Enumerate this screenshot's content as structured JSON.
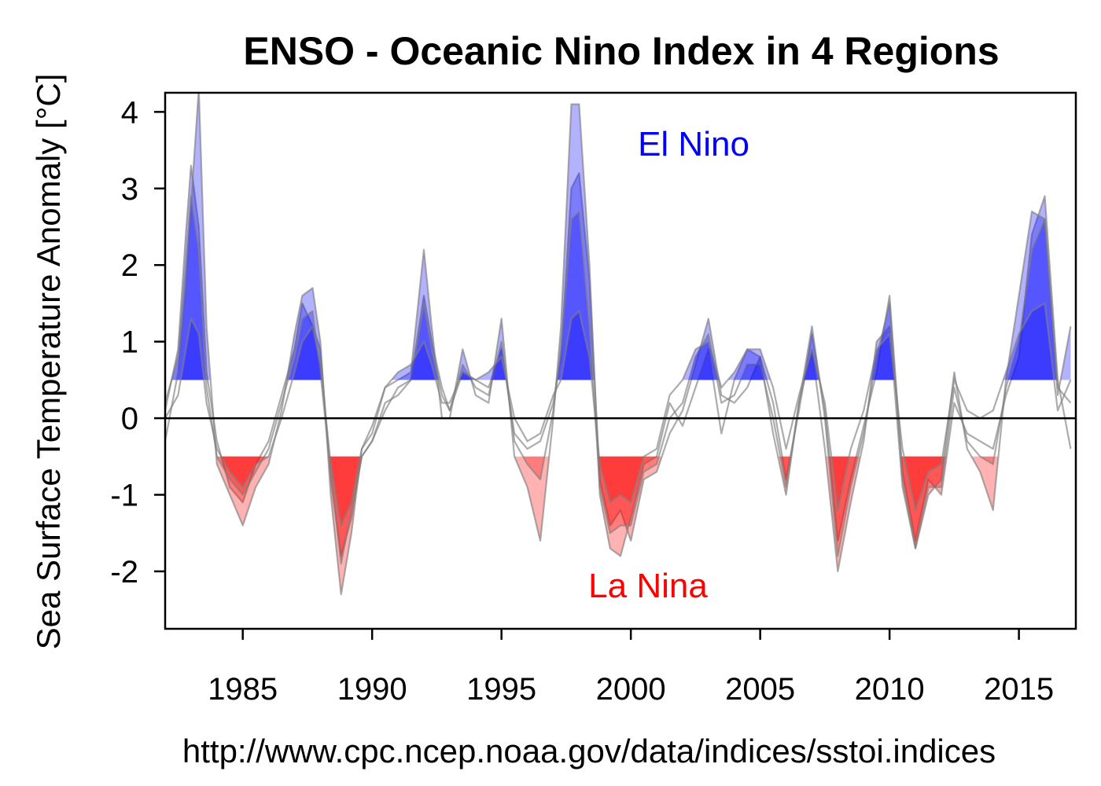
{
  "chart_data": {
    "type": "area",
    "title": "ENSO - Oceanic Nino Index in 4 Regions",
    "ylabel": "Sea Surface Temperature Anomaly  [°C]",
    "xlabel": "",
    "source": "http://www.cpc.ncep.noaa.gov/data/indices/sstoi.indices",
    "xlim": [
      1982,
      2017.2
    ],
    "ylim": [
      -2.75,
      4.25
    ],
    "x_ticks": [
      1985,
      1990,
      1995,
      2000,
      2005,
      2010,
      2015
    ],
    "y_ticks": [
      -2,
      -1,
      0,
      1,
      2,
      3,
      4
    ],
    "thresholds": {
      "el_nino": 0.5,
      "la_nina": -0.5
    },
    "annotations": {
      "el_nino": "El Nino",
      "la_nina": "La Nina"
    },
    "colors": {
      "el_nino": "#0000ff",
      "la_nina": "#ff0000",
      "line": "#808080"
    },
    "series": [
      {
        "x": [
          1982.0,
          1982.5,
          1982.8,
          1983.0,
          1983.3,
          1983.6,
          1984.0,
          1984.5,
          1985.0,
          1985.5,
          1986.0,
          1986.5,
          1987.0,
          1987.3,
          1987.7,
          1988.0,
          1988.4,
          1988.8,
          1989.2,
          1989.6,
          1990.0,
          1990.5,
          1991.0,
          1991.5,
          1992.0,
          1992.3,
          1992.7,
          1993.0,
          1993.5,
          1994.0,
          1994.5,
          1995.0,
          1995.5,
          1996.0,
          1996.5,
          1997.0,
          1997.3,
          1997.7,
          1998.0,
          1998.4,
          1998.8,
          1999.2,
          1999.6,
          2000.0,
          2000.5,
          2001.0,
          2001.5,
          2002.0,
          2002.5,
          2003.0,
          2003.5,
          2004.0,
          2004.5,
          2005.0,
          2005.5,
          2006.0,
          2006.5,
          2007.0,
          2007.5,
          2008.0,
          2008.5,
          2009.0,
          2009.5,
          2010.0,
          2010.5,
          2011.0,
          2011.5,
          2012.0,
          2012.5,
          2013.0,
          2013.5,
          2014.0,
          2014.5,
          2015.0,
          2015.5,
          2016.0,
          2016.5,
          2017.0
        ],
        "values": [
          0.1,
          0.9,
          2.4,
          3.3,
          2.5,
          0.6,
          -0.3,
          -0.9,
          -1.1,
          -0.6,
          -0.3,
          0.3,
          0.9,
          1.5,
          1.2,
          0.9,
          -0.8,
          -1.8,
          -1.3,
          -0.5,
          -0.3,
          0.1,
          0.4,
          0.5,
          1.6,
          1.0,
          0.4,
          0.1,
          0.6,
          0.5,
          0.4,
          0.9,
          -0.2,
          -0.4,
          -0.3,
          0.2,
          0.8,
          3.0,
          3.2,
          1.8,
          -0.8,
          -1.4,
          -1.2,
          -1.6,
          -0.8,
          -0.7,
          -0.2,
          0.1,
          0.7,
          1.3,
          0.3,
          0.2,
          0.4,
          0.8,
          0.2,
          -0.8,
          0.1,
          1.1,
          0.1,
          -1.6,
          -0.8,
          -0.1,
          0.6,
          1.6,
          -0.7,
          -1.6,
          -0.8,
          -1.0,
          0.2,
          -0.2,
          -0.3,
          -0.4,
          0.3,
          0.8,
          2.4,
          2.9,
          0.5,
          -0.4
        ]
      },
      {
        "x": [
          1982.0,
          1982.5,
          1982.8,
          1983.0,
          1983.3,
          1983.6,
          1984.0,
          1984.5,
          1985.0,
          1985.5,
          1986.0,
          1986.5,
          1987.0,
          1987.3,
          1987.7,
          1988.0,
          1988.4,
          1988.8,
          1989.2,
          1989.6,
          1990.0,
          1990.5,
          1991.0,
          1991.5,
          1992.0,
          1992.3,
          1992.7,
          1993.0,
          1993.5,
          1994.0,
          1994.5,
          1995.0,
          1995.5,
          1996.0,
          1996.5,
          1997.0,
          1997.3,
          1997.7,
          1998.0,
          1998.4,
          1998.8,
          1999.2,
          1999.6,
          2000.0,
          2000.5,
          2001.0,
          2001.5,
          2002.0,
          2002.5,
          2003.0,
          2003.5,
          2004.0,
          2004.5,
          2005.0,
          2005.5,
          2006.0,
          2006.5,
          2007.0,
          2007.5,
          2008.0,
          2008.5,
          2009.0,
          2009.5,
          2010.0,
          2010.5,
          2011.0,
          2011.5,
          2012.0,
          2012.5,
          2013.0,
          2013.5,
          2014.0,
          2014.5,
          2015.0,
          2015.5,
          2016.0,
          2016.5,
          2017.0
        ],
        "values": [
          -0.3,
          0.6,
          1.7,
          2.8,
          4.3,
          1.2,
          -0.6,
          -1.0,
          -1.4,
          -0.9,
          -0.6,
          0.1,
          1.1,
          1.6,
          1.7,
          1.0,
          -1.0,
          -2.3,
          -1.5,
          -0.4,
          -0.2,
          0.4,
          0.5,
          0.6,
          2.2,
          1.2,
          0.0,
          0.0,
          0.9,
          0.3,
          0.2,
          1.3,
          -0.5,
          -0.9,
          -1.6,
          0.0,
          1.2,
          4.1,
          4.1,
          2.0,
          -1.0,
          -1.7,
          -1.8,
          -1.3,
          -0.6,
          -0.5,
          0.2,
          -0.1,
          0.4,
          0.9,
          -0.2,
          0.5,
          0.9,
          0.8,
          -0.2,
          -1.0,
          0.2,
          0.9,
          -0.4,
          -2.0,
          -1.1,
          -0.3,
          1.0,
          1.2,
          -0.9,
          -1.7,
          -1.0,
          -0.8,
          0.6,
          -0.4,
          -0.7,
          -1.2,
          0.5,
          1.6,
          2.7,
          2.6,
          0.3,
          1.2
        ]
      },
      {
        "x": [
          1982.0,
          1982.5,
          1982.8,
          1983.0,
          1983.3,
          1983.6,
          1984.0,
          1984.5,
          1985.0,
          1985.5,
          1986.0,
          1986.5,
          1987.0,
          1987.3,
          1987.7,
          1988.0,
          1988.4,
          1988.8,
          1989.2,
          1989.6,
          1990.0,
          1990.5,
          1991.0,
          1991.5,
          1992.0,
          1992.3,
          1992.7,
          1993.0,
          1993.5,
          1994.0,
          1994.5,
          1995.0,
          1995.5,
          1996.0,
          1996.5,
          1997.0,
          1997.3,
          1997.7,
          1998.0,
          1998.4,
          1998.8,
          1999.2,
          1999.6,
          2000.0,
          2000.5,
          2001.0,
          2001.5,
          2002.0,
          2002.5,
          2003.0,
          2003.5,
          2004.0,
          2004.5,
          2005.0,
          2005.5,
          2006.0,
          2006.5,
          2007.0,
          2007.5,
          2008.0,
          2008.5,
          2009.0,
          2009.5,
          2010.0,
          2010.5,
          2011.0,
          2011.5,
          2012.0,
          2012.5,
          2013.0,
          2013.5,
          2014.0,
          2014.5,
          2015.0,
          2015.5,
          2016.0,
          2016.5,
          2017.0
        ],
        "values": [
          0.2,
          0.8,
          2.0,
          2.9,
          2.2,
          0.4,
          -0.5,
          -0.8,
          -1.0,
          -0.7,
          -0.4,
          0.2,
          0.8,
          1.3,
          1.4,
          0.6,
          -0.7,
          -1.9,
          -1.2,
          -0.5,
          -0.3,
          0.2,
          0.3,
          0.5,
          1.5,
          0.9,
          0.3,
          0.1,
          0.7,
          0.4,
          0.3,
          1.0,
          -0.3,
          -0.6,
          -0.8,
          0.1,
          0.9,
          2.6,
          2.7,
          1.2,
          -0.9,
          -1.5,
          -1.4,
          -1.4,
          -0.7,
          -0.6,
          0.0,
          0.2,
          0.8,
          1.1,
          0.2,
          0.3,
          0.7,
          0.7,
          0.0,
          -0.9,
          0.2,
          1.2,
          0.0,
          -1.8,
          -0.9,
          -0.2,
          0.8,
          1.5,
          -0.8,
          -1.7,
          -0.9,
          -0.9,
          0.4,
          -0.3,
          -0.5,
          -0.6,
          0.4,
          1.0,
          2.2,
          2.6,
          0.4,
          0.2
        ]
      },
      {
        "x": [
          1982.0,
          1982.5,
          1982.8,
          1983.0,
          1983.3,
          1983.6,
          1984.0,
          1984.5,
          1985.0,
          1985.5,
          1986.0,
          1986.5,
          1987.0,
          1987.3,
          1987.7,
          1988.0,
          1988.4,
          1988.8,
          1989.2,
          1989.6,
          1990.0,
          1990.5,
          1991.0,
          1991.5,
          1992.0,
          1992.3,
          1992.7,
          1993.0,
          1993.5,
          1994.0,
          1994.5,
          1995.0,
          1995.5,
          1996.0,
          1996.5,
          1997.0,
          1997.3,
          1997.7,
          1998.0,
          1998.4,
          1998.8,
          1999.2,
          1999.6,
          2000.0,
          2000.5,
          2001.0,
          2001.5,
          2002.0,
          2002.5,
          2003.0,
          2003.5,
          2004.0,
          2004.5,
          2005.0,
          2005.5,
          2006.0,
          2006.5,
          2007.0,
          2007.5,
          2008.0,
          2008.5,
          2009.0,
          2009.5,
          2010.0,
          2010.5,
          2011.0,
          2011.5,
          2012.0,
          2012.5,
          2013.0,
          2013.5,
          2014.0,
          2014.5,
          2015.0,
          2015.5,
          2016.0,
          2016.5,
          2017.0
        ],
        "values": [
          0.0,
          0.3,
          0.9,
          1.3,
          1.1,
          0.2,
          -0.4,
          -0.7,
          -0.9,
          -0.6,
          -0.5,
          0.0,
          0.6,
          1.0,
          1.2,
          0.7,
          -0.6,
          -1.4,
          -1.1,
          -0.4,
          -0.1,
          0.4,
          0.6,
          0.7,
          1.0,
          0.7,
          0.2,
          0.2,
          0.6,
          0.5,
          0.6,
          0.8,
          0.0,
          -0.3,
          -0.2,
          0.3,
          0.5,
          1.3,
          1.4,
          0.8,
          -0.6,
          -1.1,
          -1.0,
          -1.1,
          -0.5,
          -0.4,
          0.3,
          0.5,
          0.9,
          1.0,
          0.4,
          0.6,
          0.9,
          0.9,
          0.4,
          -0.4,
          0.3,
          0.9,
          0.2,
          -1.2,
          -0.4,
          0.1,
          0.9,
          1.1,
          -0.4,
          -1.2,
          -0.7,
          -0.6,
          0.5,
          0.1,
          0.0,
          0.1,
          0.6,
          1.1,
          1.4,
          1.5,
          0.1,
          0.5
        ]
      }
    ]
  }
}
